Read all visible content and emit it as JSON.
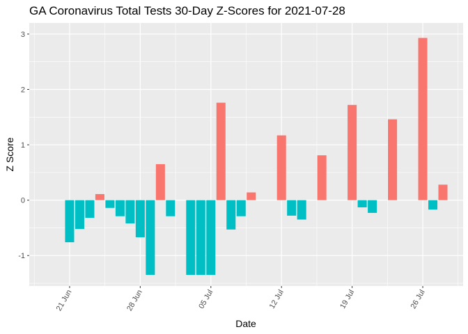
{
  "chart_data": {
    "type": "bar",
    "title": "GA Coronavirus Total Tests 30-Day Z-Scores for 2021-07-28",
    "xlabel": "Date",
    "ylabel": "Z Score",
    "ylim": [
      -1.55,
      3.2
    ],
    "yticks": [
      -1,
      0,
      1,
      2,
      3
    ],
    "ytick_labels": [
      "-1",
      "0",
      "1",
      "2",
      "3"
    ],
    "x_ticks": [
      {
        "date": "2021-06-21",
        "label": "21 Jun"
      },
      {
        "date": "2021-06-28",
        "label": "28 Jun"
      },
      {
        "date": "2021-07-05",
        "label": "05 Jul"
      },
      {
        "date": "2021-07-12",
        "label": "12 Jul"
      },
      {
        "date": "2021-07-19",
        "label": "19 Jul"
      },
      {
        "date": "2021-07-26",
        "label": "26 Jul"
      }
    ],
    "xlim": [
      "2021-06-17",
      "2021-07-30"
    ],
    "grid": true,
    "panel_background": "#ebebeb",
    "colors": {
      "positive": "#f8766d",
      "negative": "#00bfc4"
    },
    "dates": [
      "2021-06-21",
      "2021-06-22",
      "2021-06-23",
      "2021-06-24",
      "2021-06-25",
      "2021-06-26",
      "2021-06-27",
      "2021-06-28",
      "2021-06-29",
      "2021-06-30",
      "2021-07-01",
      "2021-07-02",
      "2021-07-03",
      "2021-07-04",
      "2021-07-05",
      "2021-07-06",
      "2021-07-07",
      "2021-07-08",
      "2021-07-09",
      "2021-07-10",
      "2021-07-11",
      "2021-07-12",
      "2021-07-13",
      "2021-07-14",
      "2021-07-15",
      "2021-07-16",
      "2021-07-17",
      "2021-07-18",
      "2021-07-19",
      "2021-07-20",
      "2021-07-21",
      "2021-07-22",
      "2021-07-23",
      "2021-07-24",
      "2021-07-25",
      "2021-07-26",
      "2021-07-27",
      "2021-07-28"
    ],
    "values": [
      -0.76,
      -0.52,
      -0.32,
      0.11,
      -0.14,
      -0.29,
      -0.42,
      -0.67,
      -1.35,
      0.65,
      -0.29,
      null,
      -1.35,
      -1.35,
      -1.35,
      1.76,
      -0.53,
      -0.29,
      0.14,
      null,
      null,
      1.17,
      -0.28,
      -0.35,
      null,
      0.81,
      null,
      null,
      1.72,
      -0.13,
      -0.23,
      null,
      1.46,
      null,
      null,
      2.93,
      -0.17,
      0.28
    ]
  }
}
